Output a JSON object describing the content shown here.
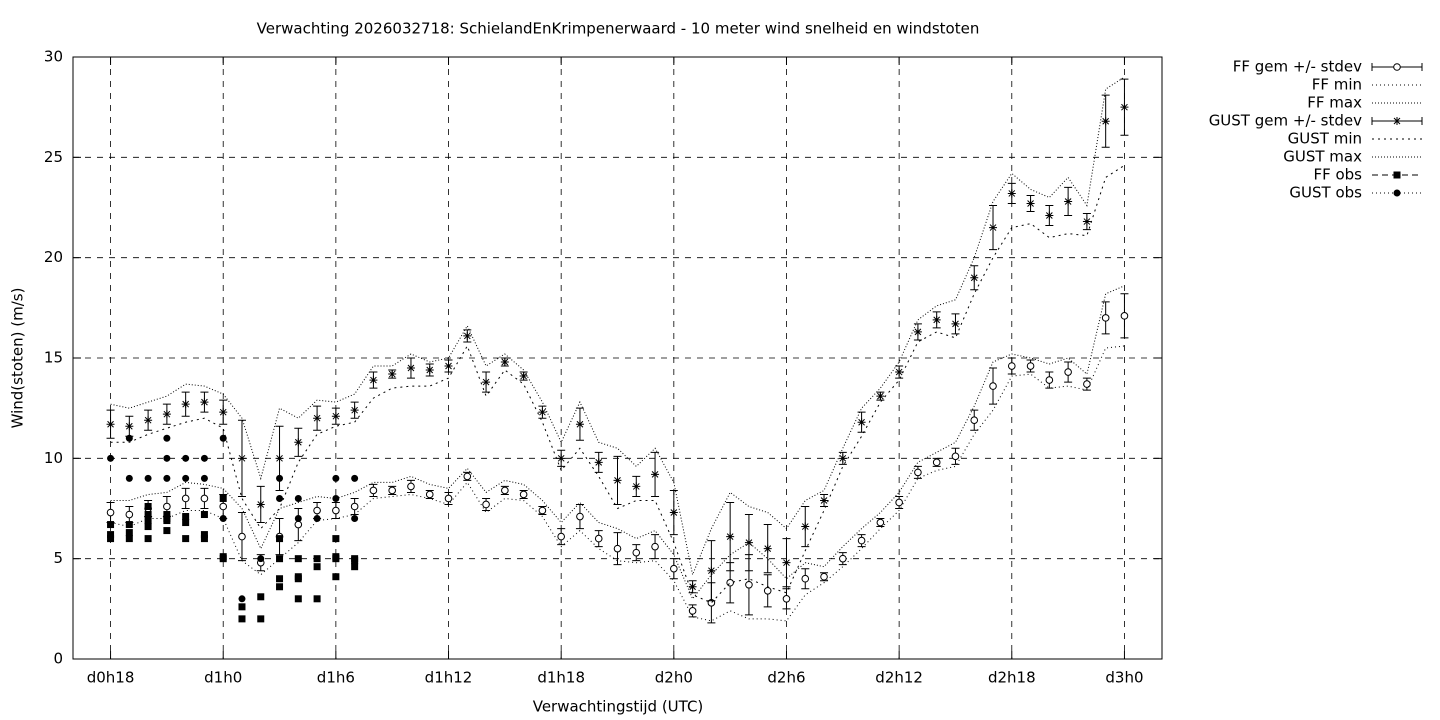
{
  "chart_data": {
    "type": "line",
    "title": "Verwachting 2026032718: SchielandEnKrimpenerwaard - 10 meter wind snelheid en windstoten",
    "xlabel": "Verwachtingstijd (UTC)",
    "ylabel": "Wind(stoten) (m/s)",
    "xlim": [
      16,
      74
    ],
    "ylim": [
      0,
      30
    ],
    "xticks": [
      {
        "value": 18,
        "label": "d0h18"
      },
      {
        "value": 24,
        "label": "d1h0"
      },
      {
        "value": 30,
        "label": "d1h6"
      },
      {
        "value": 36,
        "label": "d1h12"
      },
      {
        "value": 42,
        "label": "d1h18"
      },
      {
        "value": 48,
        "label": "d2h0"
      },
      {
        "value": 54,
        "label": "d2h6"
      },
      {
        "value": 60,
        "label": "d2h12"
      },
      {
        "value": 66,
        "label": "d2h18"
      },
      {
        "value": 72,
        "label": "d3h0"
      }
    ],
    "yticks": [
      0,
      5,
      10,
      15,
      20,
      25,
      30
    ],
    "grid": true,
    "legend": "outside-top-right",
    "color": "#000000",
    "x": [
      18,
      19,
      20,
      21,
      22,
      23,
      24,
      25,
      26,
      27,
      28,
      29,
      30,
      31,
      32,
      33,
      34,
      35,
      36,
      37,
      38,
      39,
      40,
      41,
      42,
      43,
      44,
      45,
      46,
      47,
      48,
      49,
      50,
      51,
      52,
      53,
      54,
      55,
      56,
      57,
      58,
      59,
      60,
      61,
      62,
      63,
      64,
      65,
      66,
      67,
      68,
      69,
      70,
      71,
      72
    ],
    "series": [
      {
        "name": "FF gem +/- stdev",
        "style": "errorbars",
        "marker": "circle",
        "values": [
          7.3,
          7.2,
          7.5,
          7.6,
          8.0,
          8.0,
          7.6,
          6.1,
          4.8,
          6.1,
          6.7,
          7.4,
          7.4,
          7.6,
          8.4,
          8.4,
          8.6,
          8.2,
          8.0,
          9.1,
          7.7,
          8.4,
          8.2,
          7.4,
          6.1,
          7.1,
          6.0,
          5.5,
          5.3,
          5.6,
          4.5,
          2.4,
          2.8,
          3.8,
          3.7,
          3.4,
          3.0,
          4.0,
          4.1,
          5.0,
          5.9,
          6.8,
          7.8,
          9.3,
          9.8,
          10.1,
          11.9,
          13.6,
          14.6,
          14.6,
          13.9,
          14.3,
          13.7,
          17.0,
          17.1
        ],
        "errors": [
          0.5,
          0.4,
          0.4,
          0.5,
          0.5,
          0.5,
          0.6,
          1.2,
          0.4,
          0.9,
          0.8,
          0.4,
          0.4,
          0.4,
          0.3,
          0.2,
          0.3,
          0.2,
          0.3,
          0.2,
          0.3,
          0.2,
          0.2,
          0.2,
          0.4,
          0.6,
          0.4,
          0.8,
          0.4,
          0.6,
          0.5,
          0.3,
          1.0,
          1.0,
          1.5,
          0.8,
          0.5,
          0.5,
          0.2,
          0.3,
          0.3,
          0.2,
          0.3,
          0.3,
          0.2,
          0.4,
          0.5,
          0.9,
          0.4,
          0.3,
          0.4,
          0.5,
          0.3,
          0.8,
          1.1
        ]
      },
      {
        "name": "FF min",
        "style": "dotted",
        "values": [
          6.8,
          6.6,
          7.0,
          7.0,
          7.4,
          7.4,
          7.0,
          4.9,
          4.2,
          5.0,
          5.8,
          6.9,
          7.0,
          7.2,
          8.0,
          8.1,
          8.2,
          8.0,
          7.7,
          8.8,
          7.3,
          8.0,
          7.9,
          7.1,
          5.6,
          6.4,
          5.5,
          4.9,
          4.8,
          4.9,
          3.9,
          2.1,
          1.9,
          2.4,
          2.0,
          2.0,
          1.9,
          3.2,
          3.8,
          4.6,
          5.5,
          6.5,
          7.4,
          9.0,
          9.4,
          9.6,
          11.2,
          12.4,
          14.1,
          14.2,
          13.5,
          13.6,
          13.4,
          15.5,
          15.6
        ]
      },
      {
        "name": "FF max",
        "style": "dotted",
        "values": [
          7.9,
          7.9,
          8.2,
          8.3,
          8.8,
          8.7,
          8.5,
          7.5,
          5.5,
          7.5,
          7.8,
          8.1,
          8.0,
          8.3,
          8.8,
          8.8,
          9.1,
          8.7,
          8.5,
          9.5,
          8.3,
          8.9,
          8.7,
          7.9,
          6.8,
          7.8,
          6.8,
          6.5,
          6.0,
          6.4,
          5.2,
          3.0,
          4.2,
          5.2,
          5.8,
          5.0,
          4.0,
          4.8,
          4.6,
          5.6,
          6.5,
          7.3,
          8.3,
          9.8,
          10.3,
          10.8,
          12.6,
          14.8,
          15.2,
          15.0,
          14.7,
          15.0,
          14.2,
          18.2,
          18.6
        ]
      },
      {
        "name": "GUST gem +/- stdev",
        "style": "errorbars",
        "marker": "star",
        "values": [
          11.7,
          11.6,
          11.9,
          12.2,
          12.7,
          12.8,
          12.3,
          10.0,
          7.7,
          10.0,
          10.8,
          12.0,
          12.1,
          12.4,
          13.9,
          14.2,
          14.5,
          14.4,
          14.6,
          16.1,
          13.8,
          14.8,
          14.1,
          12.3,
          10.0,
          11.7,
          9.8,
          8.9,
          8.6,
          9.2,
          7.3,
          3.6,
          4.4,
          6.1,
          5.8,
          5.5,
          4.8,
          6.6,
          7.9,
          10.0,
          11.8,
          13.1,
          14.3,
          16.3,
          16.9,
          16.7,
          19.0,
          21.5,
          23.2,
          22.7,
          22.1,
          22.8,
          21.8,
          26.8,
          27.5
        ],
        "errors": [
          0.7,
          0.5,
          0.5,
          0.5,
          0.6,
          0.5,
          0.6,
          1.9,
          0.9,
          1.6,
          0.7,
          0.6,
          0.4,
          0.4,
          0.4,
          0.2,
          0.5,
          0.3,
          0.3,
          0.3,
          0.5,
          0.2,
          0.2,
          0.3,
          0.4,
          0.8,
          0.5,
          1.2,
          0.5,
          1.1,
          1.1,
          0.3,
          1.5,
          1.7,
          1.4,
          1.2,
          1.2,
          1.0,
          0.3,
          0.3,
          0.5,
          0.2,
          0.3,
          0.4,
          0.4,
          0.5,
          0.6,
          1.1,
          0.5,
          0.4,
          0.5,
          0.7,
          0.4,
          1.3,
          1.4
        ]
      },
      {
        "name": "GUST min",
        "style": "dotted",
        "values": [
          10.8,
          10.8,
          11.2,
          11.5,
          11.8,
          12.0,
          11.5,
          8.0,
          6.5,
          7.5,
          9.8,
          11.2,
          11.6,
          11.8,
          13.0,
          13.5,
          13.6,
          13.6,
          14.0,
          15.6,
          13.1,
          14.4,
          13.7,
          11.8,
          9.4,
          10.5,
          9.1,
          7.5,
          7.9,
          7.9,
          5.8,
          3.2,
          2.8,
          3.8,
          4.0,
          3.6,
          3.3,
          5.4,
          7.4,
          9.6,
          11.1,
          12.8,
          13.9,
          15.8,
          16.3,
          16.0,
          18.2,
          20.0,
          21.5,
          21.7,
          21.0,
          21.2,
          21.1,
          24.0,
          24.6
        ]
      },
      {
        "name": "GUST max",
        "style": "dotted",
        "values": [
          12.7,
          12.5,
          12.8,
          13.1,
          13.7,
          13.6,
          13.2,
          12.0,
          9.0,
          12.5,
          12.0,
          12.9,
          12.8,
          13.2,
          14.6,
          14.6,
          15.2,
          14.8,
          15.0,
          16.6,
          14.6,
          15.2,
          14.4,
          12.8,
          10.8,
          12.8,
          10.8,
          10.5,
          9.6,
          10.5,
          8.8,
          4.2,
          6.5,
          8.3,
          7.6,
          7.3,
          6.5,
          7.9,
          8.4,
          10.5,
          12.5,
          13.5,
          14.8,
          16.9,
          17.6,
          17.9,
          20.0,
          22.8,
          24.2,
          23.4,
          23.0,
          24.0,
          22.6,
          28.4,
          29.0
        ]
      },
      {
        "name": "FF obs",
        "style": "points",
        "marker": "square",
        "x": [
          18,
          18,
          18,
          19,
          19,
          19,
          20,
          20,
          20,
          20,
          20,
          21,
          21,
          21,
          21,
          22,
          22,
          22,
          23,
          23,
          23,
          24,
          24,
          24,
          25,
          25,
          26,
          26,
          27,
          27,
          27,
          27,
          28,
          28,
          28,
          28,
          29,
          29,
          29,
          30,
          30,
          30,
          30,
          31,
          31,
          31
        ],
        "values": [
          6.0,
          6.2,
          6.7,
          6.0,
          6.3,
          6.7,
          6.0,
          6.6,
          6.9,
          7.2,
          7.6,
          6.4,
          6.9,
          7.0,
          7.2,
          6.0,
          6.8,
          7.1,
          6.0,
          6.2,
          7.2,
          5.0,
          5.1,
          8.0,
          2.0,
          2.6,
          2.0,
          3.1,
          3.6,
          4.0,
          5.0,
          6.0,
          3.0,
          4.0,
          4.1,
          5.0,
          3.0,
          4.6,
          5.0,
          4.1,
          5.0,
          5.1,
          6.0,
          4.6,
          4.9,
          5.0
        ]
      },
      {
        "name": "GUST obs",
        "style": "points",
        "marker": "dot",
        "x": [
          18,
          19,
          19,
          20,
          21,
          21,
          21,
          22,
          22,
          23,
          23,
          24,
          24,
          25,
          26,
          27,
          27,
          28,
          28,
          29,
          30,
          30,
          31,
          31
        ],
        "values": [
          10,
          9,
          11,
          9,
          9,
          10,
          11,
          9,
          10,
          9,
          10,
          7,
          11,
          3,
          5,
          8,
          9,
          7,
          8,
          7,
          8,
          9,
          7,
          9
        ]
      }
    ]
  }
}
